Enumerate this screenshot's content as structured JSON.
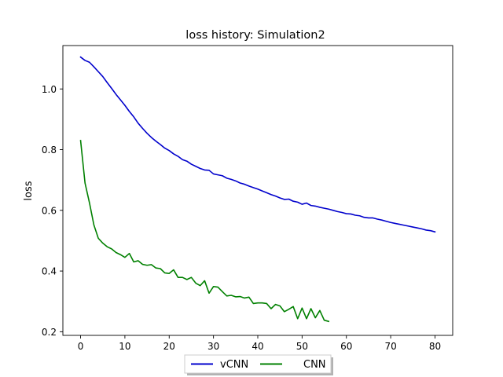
{
  "chart_data": {
    "type": "line",
    "title": "loss history:  Simulation2",
    "xlabel": "",
    "ylabel": "loss",
    "xlim": [
      -4,
      84
    ],
    "ylim": [
      0.188,
      1.143
    ],
    "xticks": [
      0,
      10,
      20,
      30,
      40,
      50,
      60,
      70,
      80
    ],
    "yticks": [
      0.2,
      0.4,
      0.6,
      0.8,
      1.0
    ],
    "ytick_labels": [
      "0.2",
      "0.4",
      "0.6",
      "0.8",
      "1.0"
    ],
    "grid": false,
    "legend": {
      "position": "bottom-center-outside",
      "columns": 2
    },
    "series": [
      {
        "name": "vCNN",
        "color": "#0000cc",
        "x": [
          0,
          1,
          2,
          3,
          4,
          5,
          6,
          7,
          8,
          9,
          10,
          11,
          12,
          13,
          14,
          15,
          16,
          17,
          18,
          19,
          20,
          21,
          22,
          23,
          24,
          25,
          26,
          27,
          28,
          29,
          30,
          31,
          32,
          33,
          34,
          35,
          36,
          37,
          38,
          39,
          40,
          41,
          42,
          43,
          44,
          45,
          46,
          47,
          48,
          49,
          50,
          51,
          52,
          53,
          54,
          55,
          56,
          57,
          58,
          59,
          60,
          61,
          62,
          63,
          64,
          65,
          66,
          67,
          68,
          69,
          70,
          71,
          72,
          73,
          74,
          75,
          76,
          77,
          78,
          79,
          80
        ],
        "y": [
          1.105,
          1.094,
          1.088,
          1.073,
          1.057,
          1.041,
          1.021,
          1.002,
          0.982,
          0.964,
          0.946,
          0.926,
          0.908,
          0.887,
          0.87,
          0.854,
          0.84,
          0.828,
          0.817,
          0.805,
          0.797,
          0.786,
          0.778,
          0.767,
          0.762,
          0.752,
          0.745,
          0.738,
          0.733,
          0.732,
          0.72,
          0.717,
          0.714,
          0.706,
          0.702,
          0.697,
          0.69,
          0.686,
          0.68,
          0.675,
          0.67,
          0.664,
          0.658,
          0.652,
          0.647,
          0.641,
          0.636,
          0.637,
          0.63,
          0.627,
          0.62,
          0.624,
          0.616,
          0.614,
          0.61,
          0.607,
          0.604,
          0.6,
          0.596,
          0.593,
          0.589,
          0.588,
          0.584,
          0.582,
          0.577,
          0.575,
          0.575,
          0.571,
          0.568,
          0.564,
          0.56,
          0.557,
          0.554,
          0.551,
          0.548,
          0.545,
          0.542,
          0.539,
          0.535,
          0.533,
          0.529
        ]
      },
      {
        "name": "CNN",
        "color": "#008000",
        "x": [
          0,
          1,
          2,
          3,
          4,
          5,
          6,
          7,
          8,
          9,
          10,
          11,
          12,
          13,
          14,
          15,
          16,
          17,
          18,
          19,
          20,
          21,
          22,
          23,
          24,
          25,
          26,
          27,
          28,
          29,
          30,
          31,
          32,
          33,
          34,
          35,
          36,
          37,
          38,
          39,
          40,
          41,
          42,
          43,
          44,
          45,
          46,
          47,
          48,
          49,
          50,
          51,
          52,
          53,
          54,
          55,
          56
        ],
        "y": [
          0.83,
          0.69,
          0.625,
          0.552,
          0.508,
          0.492,
          0.48,
          0.473,
          0.461,
          0.454,
          0.445,
          0.458,
          0.43,
          0.434,
          0.422,
          0.419,
          0.421,
          0.41,
          0.408,
          0.394,
          0.392,
          0.404,
          0.379,
          0.379,
          0.372,
          0.379,
          0.36,
          0.352,
          0.368,
          0.327,
          0.349,
          0.347,
          0.332,
          0.318,
          0.32,
          0.315,
          0.316,
          0.311,
          0.314,
          0.293,
          0.295,
          0.295,
          0.293,
          0.276,
          0.29,
          0.285,
          0.266,
          0.274,
          0.283,
          0.243,
          0.278,
          0.243,
          0.276,
          0.246,
          0.27,
          0.238,
          0.234
        ]
      }
    ]
  }
}
